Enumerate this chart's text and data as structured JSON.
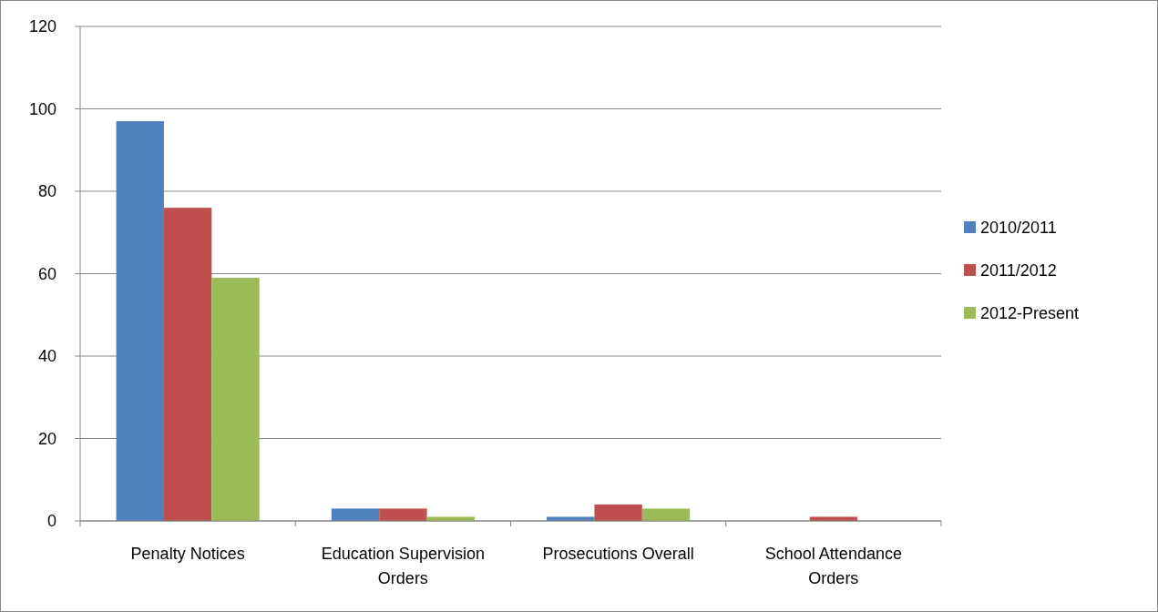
{
  "chart_data": {
    "type": "bar",
    "categories": [
      "Penalty Notices",
      "Education Supervision Orders",
      "Prosecutions Overall",
      "School Attendance Orders"
    ],
    "series": [
      {
        "name": "2010/2011",
        "color": "#4f81bd",
        "values": [
          97,
          3,
          1,
          0
        ]
      },
      {
        "name": "2011/2012",
        "color": "#c0504d",
        "values": [
          76,
          3,
          4,
          1
        ]
      },
      {
        "name": "2012-Present",
        "color": "#9bbb59",
        "values": [
          59,
          1,
          3,
          0
        ]
      }
    ],
    "ylim": [
      0,
      120
    ],
    "yticks": [
      0,
      20,
      40,
      60,
      80,
      100,
      120
    ],
    "grid": "y",
    "legend": "right"
  }
}
